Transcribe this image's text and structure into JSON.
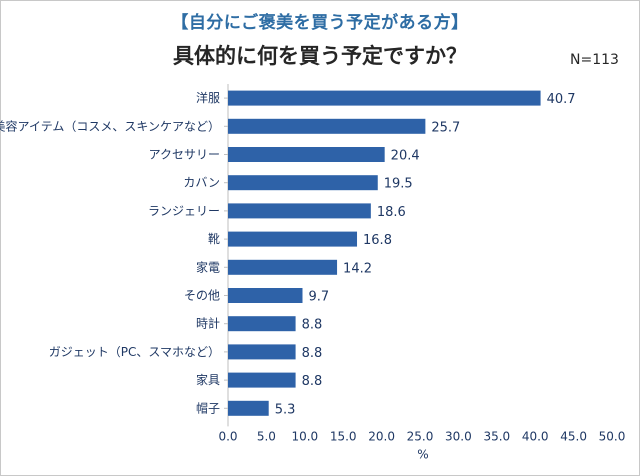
{
  "subtitle": "【自分にご褒美を買う予定がある方】",
  "n_label": "N=113",
  "chart_data": {
    "type": "bar",
    "orientation": "horizontal",
    "title": "具体的に何を買う予定ですか？",
    "categories": [
      "洋服",
      "美容アイテム（コスメ、スキンケアなど）",
      "アクセサリー",
      "カバン",
      "ランジェリー",
      "靴",
      "家電",
      "その他",
      "時計",
      "ガジェット（PC、スマホなど）",
      "家具",
      "帽子"
    ],
    "values": [
      40.7,
      25.7,
      20.4,
      19.5,
      18.6,
      16.8,
      14.2,
      9.7,
      8.8,
      8.8,
      8.8,
      5.3
    ],
    "value_labels": [
      "40.7",
      "25.7",
      "20.4",
      "19.5",
      "18.6",
      "16.8",
      "14.2",
      "9.7",
      "8.8",
      "8.8",
      "8.8",
      "5.3"
    ],
    "xlim": [
      0,
      50
    ],
    "xticks": [
      "0.0",
      "5.0",
      "10.0",
      "15.0",
      "20.0",
      "25.0",
      "30.0",
      "35.0",
      "40.0",
      "45.0",
      "50.0"
    ],
    "xlabel": "%",
    "ylabel": "",
    "grid": false,
    "bar_color": "#2e62a8"
  }
}
